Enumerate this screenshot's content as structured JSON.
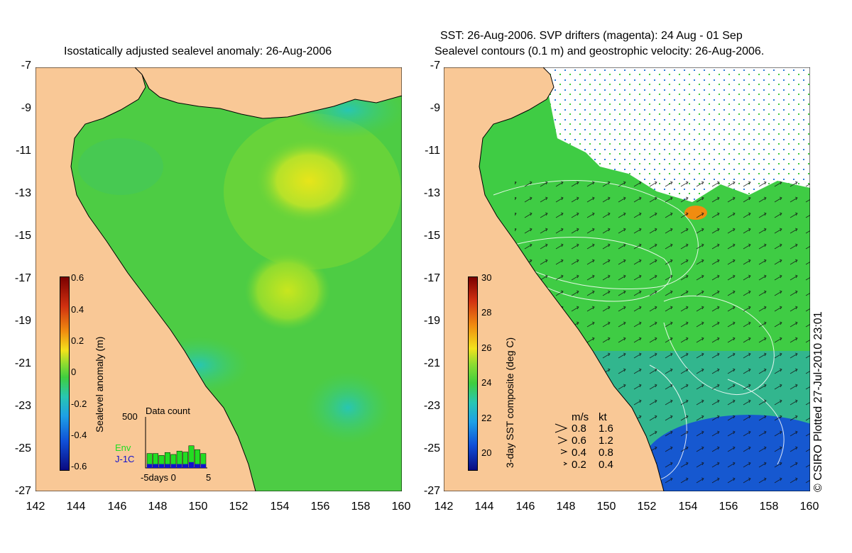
{
  "left_panel": {
    "title": "Isostatically adjusted sealevel anomaly: 26-Aug-2006",
    "y_ticks": [
      "-7",
      "-9",
      "-11",
      "-13",
      "-15",
      "-17",
      "-19",
      "-21",
      "-23",
      "-25",
      "-27"
    ],
    "x_ticks": [
      "142",
      "144",
      "146",
      "148",
      "150",
      "152",
      "154",
      "156",
      "158",
      "160"
    ],
    "colorbar": {
      "label": "Sealevel anomaly (m)",
      "ticks": [
        "0.6",
        "0.4",
        "0.2",
        "0",
        "-0.2",
        "-0.4",
        "-0.6"
      ]
    },
    "inset": {
      "title": "Data count",
      "y_max": "500",
      "x_label": "-5days 0",
      "x_end": "5",
      "series": [
        {
          "name": "Env",
          "color": "#22dd22"
        },
        {
          "name": "J-1C",
          "color": "#1111cc"
        }
      ],
      "env_counts": [
        150,
        150,
        130,
        160,
        140,
        175,
        165,
        230,
        190,
        150
      ],
      "j1c_counts": [
        40,
        40,
        40,
        40,
        40,
        40,
        40,
        60,
        40,
        40
      ]
    }
  },
  "right_panel": {
    "title_line1": "SST: 26-Aug-2006. SVP drifters (magenta): 24 Aug - 01 Sep",
    "title_line2": "Sealevel contours (0.1 m) and geostrophic velocity: 26-Aug-2006.",
    "y_ticks": [
      "-7",
      "-9",
      "-11",
      "-13",
      "-15",
      "-17",
      "-19",
      "-21",
      "-23",
      "-25",
      "-27"
    ],
    "x_ticks": [
      "142",
      "144",
      "146",
      "148",
      "150",
      "152",
      "154",
      "156",
      "158",
      "160"
    ],
    "colorbar": {
      "label": "3-day SST composite (deg C)",
      "ticks": [
        "30",
        "28",
        "26",
        "24",
        "22",
        "20"
      ]
    },
    "legend": {
      "header_ms": "m/s",
      "header_kt": "kt",
      "rows": [
        {
          "ms": "0.8",
          "kt": "1.6"
        },
        {
          "ms": "0.6",
          "kt": "1.2"
        },
        {
          "ms": "0.4",
          "kt": "0.8"
        },
        {
          "ms": "0.2",
          "kt": "0.4"
        }
      ]
    }
  },
  "credit": "© CSIRO Plotted 27-Jul-2010 23:01",
  "colors": {
    "land": "#f9c896",
    "ocean_green": "#3fce3f",
    "cloud": "#ffffff"
  }
}
